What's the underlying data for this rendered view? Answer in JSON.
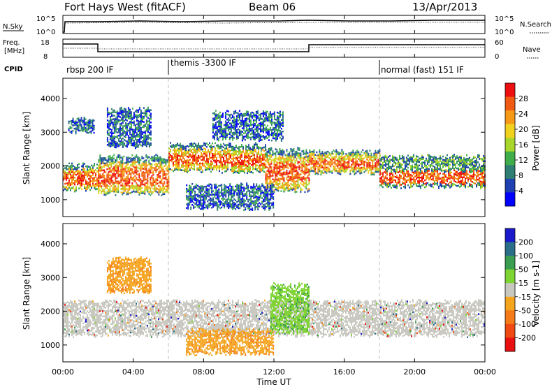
{
  "header": {
    "station": "Fort Hays West (fitACF)",
    "beam": "Beam 06",
    "date": "13/Apr/2013"
  },
  "top_panels": {
    "nsky_label": "N.Sky",
    "nsky_ticks": [
      "10^5",
      "10^0"
    ],
    "nsearch_label": "N.Search",
    "nsearch_ticks": [
      "10^5",
      "10^0"
    ],
    "freq_label_1": "Freq.",
    "freq_label_2": "[MHz]",
    "freq_ticks": [
      "18",
      "8"
    ],
    "nave_label": "Nave",
    "nave_ticks": [
      "60",
      "0"
    ],
    "cpid_label": "CPID",
    "cpid_segments": [
      {
        "label": "rbsp 200 IF",
        "start_hour": 0,
        "end_hour": 6
      },
      {
        "label": "themis -3300 IF",
        "start_hour": 6,
        "end_hour": 18
      },
      {
        "label": "normal (fast) 151 IF",
        "start_hour": 18,
        "end_hour": 24
      }
    ]
  },
  "chart_data": [
    {
      "type": "heatmap",
      "panel": "power",
      "ylabel": "Slant Range [km]",
      "xlabel": "",
      "xlim": [
        0,
        24
      ],
      "ylim": [
        500,
        4600
      ],
      "yticks": [
        "1000",
        "2000",
        "3000",
        "4000"
      ],
      "colorbar": {
        "label": "Power [dB]",
        "ticks": [
          "4",
          "8",
          "12",
          "16",
          "20",
          "24",
          "28"
        ],
        "colors": [
          "#0000ff",
          "#1e40b0",
          "#2e7e74",
          "#3fae4a",
          "#a8d62a",
          "#f0d21e",
          "#f59a16",
          "#f05a12",
          "#ee1010"
        ]
      },
      "echo_bands": [
        {
          "start_hour": 0.0,
          "end_hour": 2.0,
          "lower_km": 1300,
          "upper_km": 2050,
          "level": "high"
        },
        {
          "start_hour": 2.0,
          "end_hour": 6.0,
          "lower_km": 1200,
          "upper_km": 2300,
          "level": "high"
        },
        {
          "start_hour": 6.0,
          "end_hour": 11.5,
          "lower_km": 1850,
          "upper_km": 2650,
          "level": "high"
        },
        {
          "start_hour": 11.5,
          "end_hour": 14.0,
          "lower_km": 1300,
          "upper_km": 2500,
          "level": "high"
        },
        {
          "start_hour": 14.0,
          "end_hour": 18.0,
          "lower_km": 1800,
          "upper_km": 2450,
          "level": "high"
        },
        {
          "start_hour": 18.0,
          "end_hour": 24.0,
          "lower_km": 1400,
          "upper_km": 2300,
          "level": "mid"
        },
        {
          "start_hour": 7.0,
          "end_hour": 12.0,
          "lower_km": 750,
          "upper_km": 1450,
          "level": "low"
        },
        {
          "start_hour": 0.3,
          "end_hour": 1.8,
          "lower_km": 3000,
          "upper_km": 3400,
          "level": "low"
        },
        {
          "start_hour": 2.5,
          "end_hour": 5.0,
          "lower_km": 2600,
          "upper_km": 3700,
          "level": "low"
        },
        {
          "start_hour": 8.5,
          "end_hour": 12.5,
          "lower_km": 2800,
          "upper_km": 3600,
          "level": "low"
        }
      ]
    },
    {
      "type": "heatmap",
      "panel": "velocity",
      "ylabel": "Slant Range [km]",
      "xlabel": "Time UT",
      "xlim": [
        0,
        24
      ],
      "ylim": [
        500,
        4600
      ],
      "yticks": [
        "1000",
        "2000",
        "3000",
        "4000"
      ],
      "xticks": [
        "00:00",
        "04:00",
        "08:00",
        "12:00",
        "16:00",
        "20:00",
        "00:00"
      ],
      "colorbar": {
        "label": "Velocity [m s-1]",
        "ticks": [
          "200",
          "100",
          "50",
          "15",
          "-15",
          "-50",
          "-100",
          "-200"
        ],
        "colors": [
          "#1a1acc",
          "#2a6e8a",
          "#3a9d50",
          "#7ed432",
          "#c8c8c0",
          "#f5a41e",
          "#f57a1a",
          "#f04a14",
          "#e81010"
        ]
      },
      "echo_bands": [
        {
          "start_hour": 0.0,
          "end_hour": 24.0,
          "lower_km": 1300,
          "upper_km": 2300,
          "velocity": "ground"
        },
        {
          "start_hour": 7.0,
          "end_hour": 12.0,
          "lower_km": 750,
          "upper_km": 1450,
          "velocity": "-50"
        },
        {
          "start_hour": 2.5,
          "end_hour": 5.0,
          "lower_km": 2600,
          "upper_km": 3600,
          "velocity": "-50"
        },
        {
          "start_hour": 11.8,
          "end_hour": 14.0,
          "lower_km": 1400,
          "upper_km": 2800,
          "velocity": "50"
        }
      ]
    }
  ]
}
